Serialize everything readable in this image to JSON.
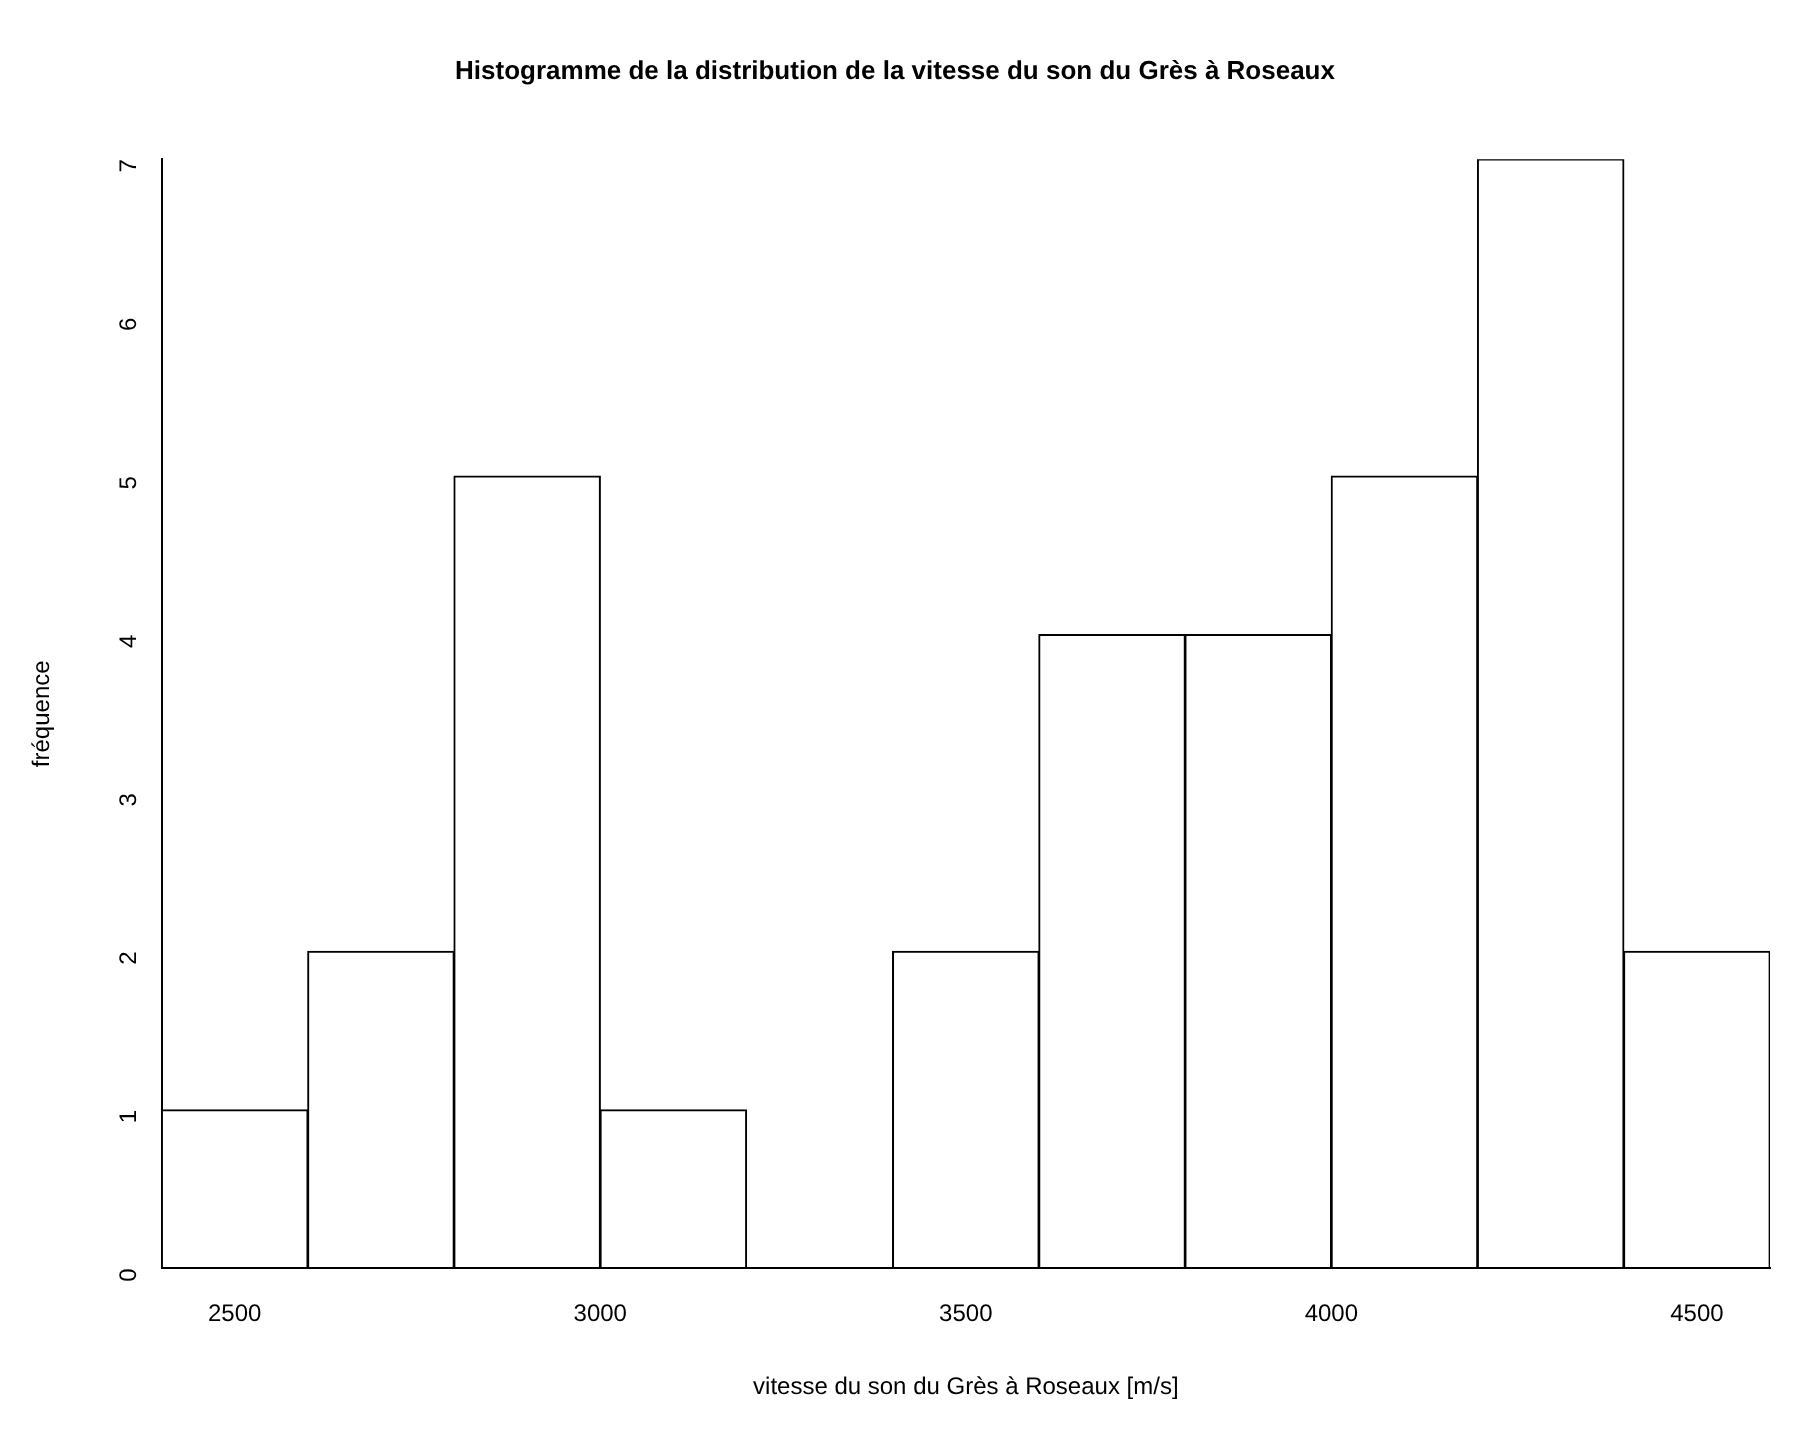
{
  "chart_data": {
    "type": "histogram",
    "title": "Histogramme de la distribution de la vitesse du son du Grès à Roseaux",
    "xlabel": "vitesse du son du Grès à Roseaux [m/s]",
    "ylabel": "fréquence",
    "bins": [
      2400,
      2600,
      2800,
      3000,
      3200,
      3400,
      3600,
      3800,
      4000,
      4200,
      4400,
      4600
    ],
    "values": [
      1,
      2,
      5,
      1,
      0,
      2,
      4,
      4,
      5,
      7,
      2
    ],
    "color": "#ffffff",
    "xlim": [
      2400,
      4600
    ],
    "xticks": [
      2500,
      3000,
      3500,
      4000,
      4500
    ],
    "ylim": [
      0,
      7
    ],
    "yticks": [
      0,
      1,
      2,
      3,
      4,
      5,
      6,
      7
    ],
    "grid": false
  }
}
